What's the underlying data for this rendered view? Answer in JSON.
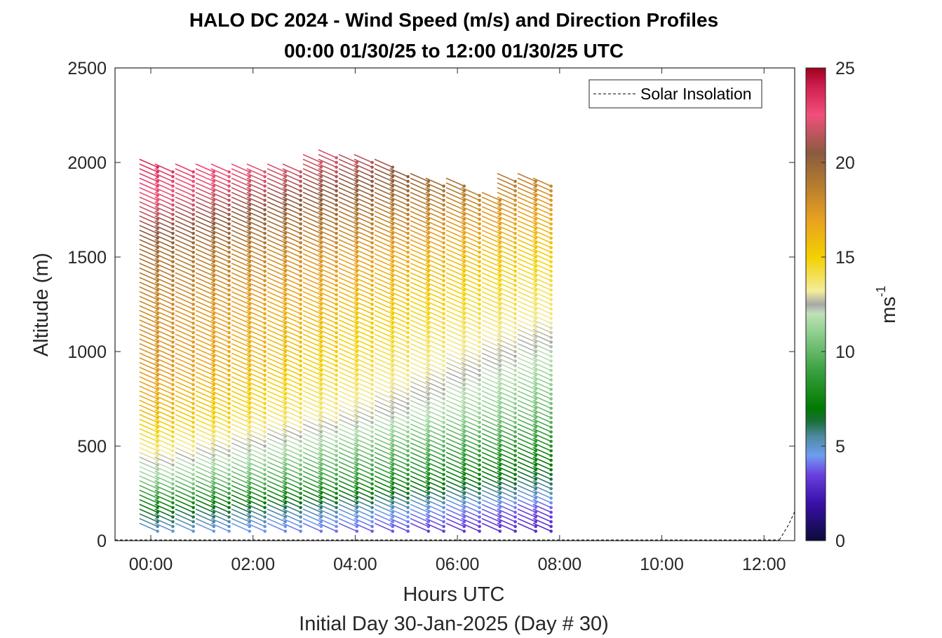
{
  "chart_data": {
    "type": "wind-barb-profile",
    "title": "HALO DC 2024 - Wind Speed (m/s) and Direction Profiles",
    "subtitle": "00:00 01/30/25 to 12:00 01/30/25  UTC",
    "xlabel": "Hours UTC",
    "xlabel2": "Initial Day 30-Jan-2025 (Day # 30)",
    "ylabel": "Altitude (m)",
    "xlim": [
      -0.7,
      12.6
    ],
    "ylim": [
      0,
      2500
    ],
    "x_ticks": [
      0,
      2,
      4,
      6,
      8,
      10,
      12
    ],
    "x_tick_labels": [
      "00:00",
      "02:00",
      "04:00",
      "06:00",
      "08:00",
      "10:00",
      "12:00"
    ],
    "y_ticks": [
      0,
      500,
      1000,
      1500,
      2000,
      2500
    ],
    "y_tick_labels": [
      "0",
      "500",
      "1000",
      "1500",
      "2000",
      "2500"
    ],
    "legend": {
      "label": "Solar Insolation",
      "placement": "top-right"
    },
    "colorbar": {
      "label": "ms",
      "label_exponent": "-1",
      "range": [
        0,
        25
      ],
      "ticks": [
        0,
        5,
        10,
        15,
        20,
        25
      ],
      "tick_labels": [
        "0",
        "5",
        "10",
        "15",
        "20",
        "25"
      ],
      "stops": [
        {
          "v": 0,
          "c": "#0b0b3b"
        },
        {
          "v": 2,
          "c": "#3a10a8"
        },
        {
          "v": 3.5,
          "c": "#6a40e0"
        },
        {
          "v": 4.5,
          "c": "#6f9cf0"
        },
        {
          "v": 5.5,
          "c": "#4e8aa0"
        },
        {
          "v": 6.3,
          "c": "#1a6f3a"
        },
        {
          "v": 7,
          "c": "#007a00"
        },
        {
          "v": 9,
          "c": "#3aa040"
        },
        {
          "v": 11,
          "c": "#8fcf8f"
        },
        {
          "v": 12,
          "c": "#c0e0b8"
        },
        {
          "v": 12.5,
          "c": "#a8a8a8"
        },
        {
          "v": 13.2,
          "c": "#f3ec9c"
        },
        {
          "v": 15,
          "c": "#f4d000"
        },
        {
          "v": 17,
          "c": "#e8a020"
        },
        {
          "v": 19,
          "c": "#b07830"
        },
        {
          "v": 20.5,
          "c": "#8a5a40"
        },
        {
          "v": 22.5,
          "c": "#f0507a"
        },
        {
          "v": 24,
          "c": "#d02050"
        },
        {
          "v": 25,
          "c": "#a00020"
        }
      ]
    },
    "profile_times_hours": [
      0.05,
      0.35,
      0.75,
      1.15,
      1.45,
      1.85,
      2.15,
      2.55,
      2.85,
      3.25,
      3.55,
      3.95,
      4.25,
      4.65,
      4.95,
      5.35,
      5.65,
      6.05,
      6.35,
      6.75,
      7.05,
      7.45,
      7.75
    ],
    "profile_top_altitude_m": [
      1980,
      1960,
      1960,
      1960,
      1960,
      1960,
      1960,
      1960,
      1960,
      2020,
      2030,
      2020,
      2000,
      1980,
      1940,
      1920,
      1880,
      1880,
      1830,
      1820,
      1900,
      1900,
      1880
    ],
    "altitude_step_m": 25,
    "speed_profile_breakpoints": {
      "altitude_m": [
        0,
        150,
        300,
        450,
        650,
        900,
        1200,
        1500,
        1800,
        1950,
        2050
      ],
      "early_speed_ms": [
        4,
        7,
        11,
        13.5,
        16,
        17.5,
        18,
        19.5,
        22.5,
        23.5,
        24
      ],
      "late_speed_ms": [
        2.5,
        3.5,
        6,
        7.5,
        10,
        11.5,
        13.5,
        15,
        17.5,
        19,
        20
      ]
    },
    "wind_direction_deg": 295,
    "solar_insolation_curve": {
      "x": [
        12.3,
        12.48,
        12.6
      ],
      "y": [
        0,
        80,
        150
      ]
    }
  }
}
